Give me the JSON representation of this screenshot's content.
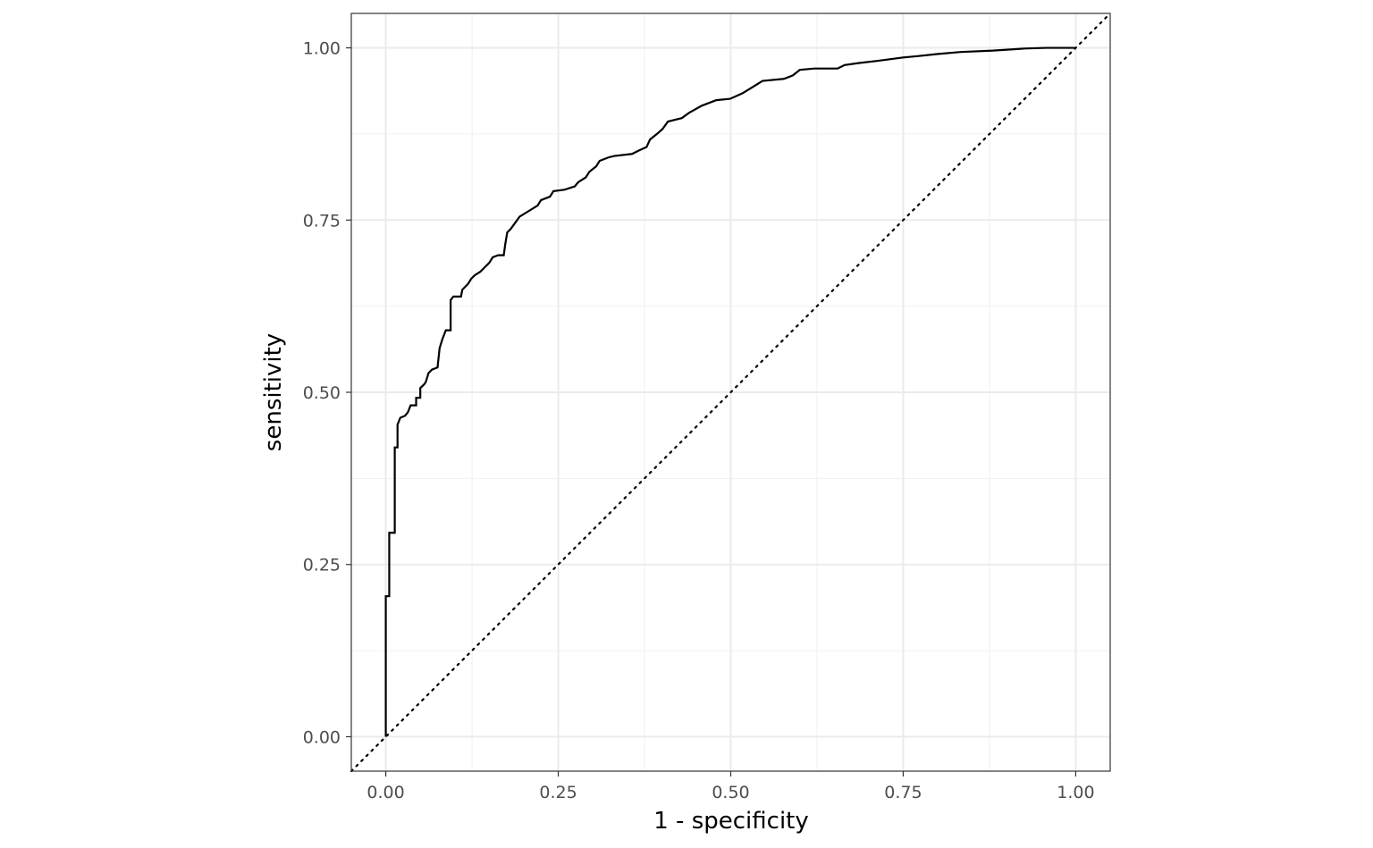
{
  "chart_data": {
    "type": "line",
    "x_label": "1 - specificity",
    "y_label": "sensitivity",
    "color": "#000000",
    "x": [
      0,
      0,
      0.005,
      0.005,
      0.013,
      0.013,
      0.017,
      0.017,
      0.021,
      0.028,
      0.032,
      0.036,
      0.044,
      0.044,
      0.05,
      0.05,
      0.056,
      0.058,
      0.062,
      0.067,
      0.075,
      0.078,
      0.082,
      0.087,
      0.094,
      0.094,
      0.098,
      0.109,
      0.111,
      0.119,
      0.124,
      0.129,
      0.137,
      0.142,
      0.15,
      0.155,
      0.163,
      0.171,
      0.173,
      0.176,
      0.181,
      0.189,
      0.194,
      0.207,
      0.22,
      0.225,
      0.238,
      0.243,
      0.259,
      0.274,
      0.279,
      0.29,
      0.295,
      0.305,
      0.31,
      0.323,
      0.331,
      0.357,
      0.367,
      0.378,
      0.383,
      0.393,
      0.401,
      0.409,
      0.429,
      0.44,
      0.458,
      0.479,
      0.499,
      0.517,
      0.538,
      0.546,
      0.577,
      0.59,
      0.6,
      0.621,
      0.655,
      0.665,
      0.686,
      0.712,
      0.75,
      0.771,
      0.799,
      0.833,
      0.88,
      0.926,
      0.957,
      1
    ],
    "values": [
      0,
      0.204,
      0.204,
      0.296,
      0.296,
      0.42,
      0.42,
      0.453,
      0.463,
      0.466,
      0.471,
      0.481,
      0.481,
      0.492,
      0.492,
      0.506,
      0.512,
      0.515,
      0.528,
      0.533,
      0.536,
      0.564,
      0.577,
      0.59,
      0.59,
      0.634,
      0.639,
      0.639,
      0.649,
      0.657,
      0.665,
      0.67,
      0.675,
      0.68,
      0.688,
      0.696,
      0.699,
      0.699,
      0.714,
      0.732,
      0.737,
      0.748,
      0.755,
      0.763,
      0.771,
      0.779,
      0.784,
      0.792,
      0.794,
      0.799,
      0.805,
      0.812,
      0.82,
      0.828,
      0.836,
      0.841,
      0.843,
      0.846,
      0.851,
      0.856,
      0.867,
      0.875,
      0.882,
      0.893,
      0.898,
      0.906,
      0.916,
      0.924,
      0.926,
      0.934,
      0.947,
      0.952,
      0.955,
      0.96,
      0.968,
      0.97,
      0.97,
      0.975,
      0.978,
      0.981,
      0.986,
      0.988,
      0.991,
      0.994,
      0.996,
      0.999,
      1,
      1
    ],
    "xlim": [
      -0.05,
      1.05
    ],
    "ylim": [
      -0.05,
      1.05
    ],
    "xticks": [
      {
        "value": 0,
        "label": "0.00"
      },
      {
        "value": 0.25,
        "label": "0.25"
      },
      {
        "value": 0.5,
        "label": "0.50"
      },
      {
        "value": 0.75,
        "label": "0.75"
      },
      {
        "value": 1,
        "label": "1.00"
      }
    ],
    "yticks": [
      {
        "value": 0,
        "label": "0.00"
      },
      {
        "value": 0.25,
        "label": "0.25"
      },
      {
        "value": 0.5,
        "label": "0.50"
      },
      {
        "value": 0.75,
        "label": "0.75"
      },
      {
        "value": 1,
        "label": "1.00"
      }
    ],
    "x_minor_ticks": [
      0.125,
      0.375,
      0.625,
      0.875
    ],
    "y_minor_ticks": [
      0.125,
      0.375,
      0.625,
      0.875
    ],
    "grid": true,
    "reference_line": {
      "slope": 1,
      "intercept": 0,
      "style": "dotted"
    }
  }
}
